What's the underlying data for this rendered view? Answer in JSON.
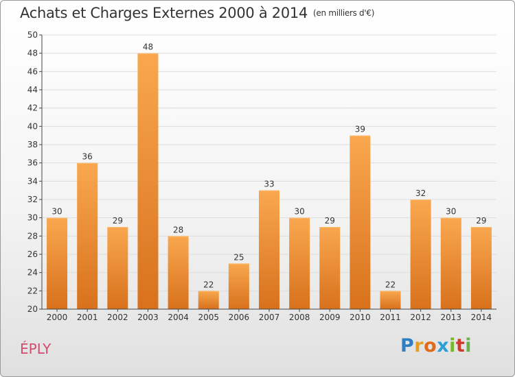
{
  "header": {
    "title": "Achats et Charges Externes 2000 à 2014",
    "subtitle": "(en milliers d'€)"
  },
  "footer": {
    "commune": "ÉPLY",
    "logo_text": [
      "P",
      "r",
      "o",
      "x",
      "i",
      "t",
      "i"
    ]
  },
  "colors": {
    "bar_top": "#f9a84f",
    "bar_bottom": "#d8711c",
    "grid": "#dddddd",
    "axis": "#444444",
    "text": "#333333"
  },
  "chart_data": {
    "type": "bar",
    "title": "Achats et Charges Externes 2000 à 2014",
    "subtitle": "(en milliers d'€)",
    "categories": [
      "2000",
      "2001",
      "2002",
      "2003",
      "2004",
      "2005",
      "2006",
      "2007",
      "2008",
      "2009",
      "2010",
      "2011",
      "2012",
      "2013",
      "2014"
    ],
    "values": [
      30,
      36,
      29,
      48,
      28,
      22,
      25,
      33,
      30,
      29,
      39,
      22,
      32,
      30,
      29
    ],
    "ylim": [
      20,
      50
    ],
    "yticks": [
      20,
      22,
      24,
      26,
      28,
      30,
      32,
      34,
      36,
      38,
      40,
      42,
      44,
      46,
      48,
      50
    ],
    "grid": true,
    "data_labels": true
  }
}
